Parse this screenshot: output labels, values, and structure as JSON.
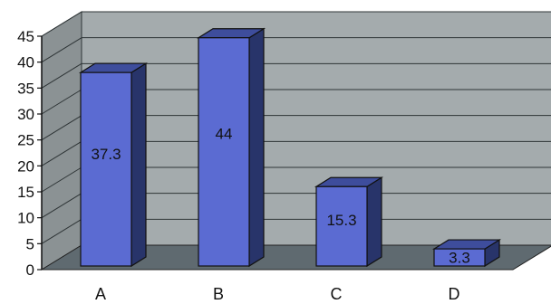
{
  "chart_data": {
    "type": "bar",
    "categories": [
      "A",
      "B",
      "C",
      "D"
    ],
    "values": [
      37.3,
      44,
      15.3,
      3.3
    ],
    "data_labels": [
      "37.3",
      "44",
      "15.3",
      "3.3"
    ],
    "ylim": [
      0,
      45
    ],
    "yticks": [
      0,
      5,
      10,
      15,
      20,
      25,
      30,
      35,
      40,
      45
    ],
    "title": "",
    "xlabel": "",
    "ylabel": "",
    "grid": true,
    "legend": "none",
    "style": "3d-column",
    "colors": {
      "bar_front": "#5b6bd2",
      "bar_top": "#3e4d9c",
      "bar_side": "#28346a",
      "back_wall": "#a4abad",
      "side_wall": "#8b9294",
      "floor": "#5f6a70",
      "gridline": "#2e3436",
      "axis": "#111111",
      "label": "#111111"
    }
  }
}
